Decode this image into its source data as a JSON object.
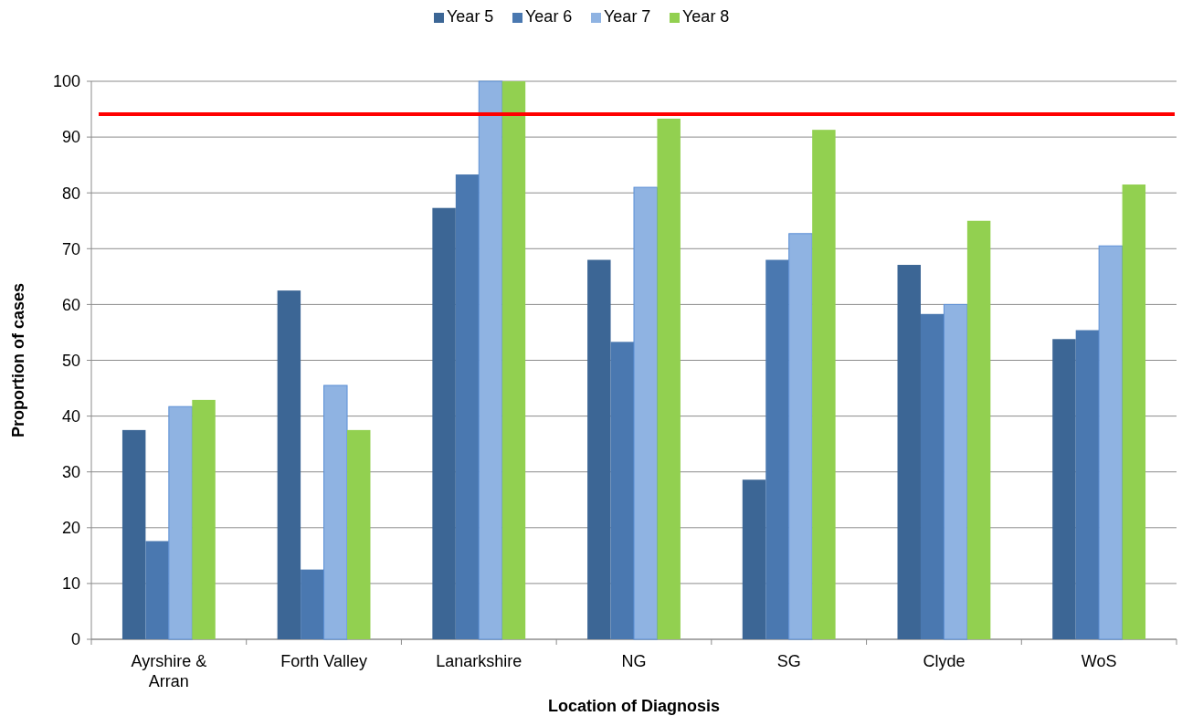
{
  "chart_data": {
    "type": "bar",
    "xlabel": "Location of Diagnosis",
    "ylabel": "Proportion of cases",
    "categories": [
      "Ayrshire & Arran",
      "Forth Valley",
      "Lanarkshire",
      "NG",
      "SG",
      "Clyde",
      "WoS"
    ],
    "series": [
      {
        "name": "Year 5",
        "color": "#3c6695",
        "values": [
          37.5,
          62.5,
          77.3,
          68,
          28.6,
          67.1,
          53.8
        ]
      },
      {
        "name": "Year 6",
        "color": "#4a78b0",
        "values": [
          17.6,
          12.5,
          83.3,
          53.3,
          68,
          58.3,
          55.4
        ]
      },
      {
        "name": "Year 7",
        "color": "#8fb3e2",
        "values": [
          41.7,
          45.5,
          100,
          81,
          72.7,
          60,
          70.5
        ]
      },
      {
        "name": "Year 8",
        "color": "#92d050",
        "values": [
          42.9,
          37.5,
          100,
          93.3,
          91.3,
          75,
          81.5
        ]
      }
    ],
    "ylim": [
      0,
      100
    ],
    "yticks": [
      0,
      10,
      20,
      30,
      40,
      50,
      60,
      70,
      80,
      90,
      100
    ],
    "grid": "y",
    "legend": "top",
    "ref_lines": [
      {
        "axis": "y",
        "value": 94.1,
        "color": "#ff0000"
      }
    ]
  }
}
